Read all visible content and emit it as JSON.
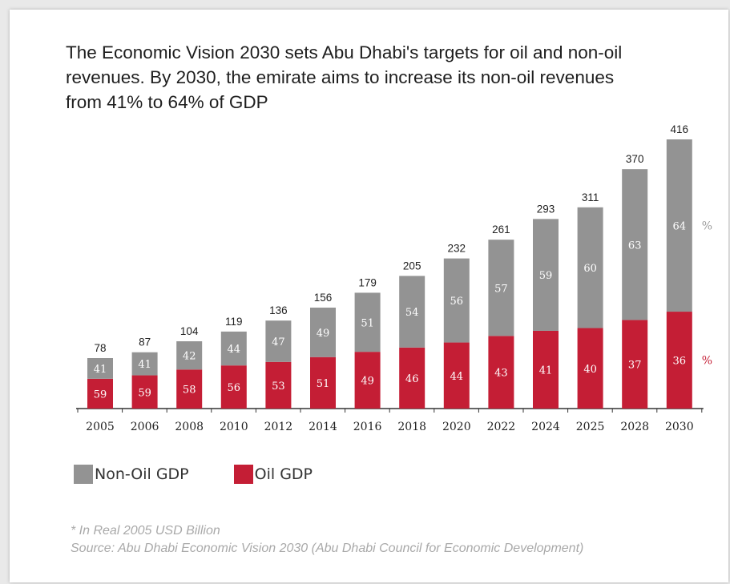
{
  "intro": {
    "line1": "The Economic Vision 2030 sets Abu Dhabi's targets for oil and non-oil",
    "line2": "revenues. By 2030, the emirate aims to increase its non-oil revenues",
    "line3": "from 41% to 64% of GDP"
  },
  "chart_data": {
    "type": "bar",
    "stacked": true,
    "title": "",
    "xlabel": "",
    "ylabel": "",
    "categories": [
      "2005",
      "2006",
      "2008",
      "2010",
      "2012",
      "2014",
      "2016",
      "2018",
      "2020",
      "2022",
      "2024",
      "2025",
      "2028",
      "2030"
    ],
    "totals": [
      78,
      87,
      104,
      119,
      136,
      156,
      179,
      205,
      232,
      261,
      293,
      311,
      370,
      416
    ],
    "series": [
      {
        "name": "Oil GDP",
        "color": "#c41e35",
        "share_percent": [
          59,
          59,
          58,
          56,
          53,
          51,
          49,
          46,
          44,
          43,
          41,
          40,
          37,
          36
        ]
      },
      {
        "name": "Non-Oil GDP",
        "color": "#939393",
        "share_percent": [
          41,
          41,
          42,
          44,
          47,
          49,
          51,
          54,
          56,
          57,
          59,
          60,
          63,
          64
        ]
      }
    ],
    "percent_markers": {
      "nonoil": "%",
      "oil": "%"
    },
    "ylim": [
      0,
      416
    ],
    "grid": false,
    "legend_position": "bottom-left"
  },
  "legend": {
    "items": [
      {
        "label": "Non-Oil GDP",
        "color": "#939393"
      },
      {
        "label": "Oil GDP",
        "color": "#c41e35"
      }
    ]
  },
  "footnote": {
    "unit": "* In Real 2005 USD Billion",
    "source": "Source: Abu Dhabi Economic Vision 2030 (Abu Dhabi Council for Economic Development)"
  }
}
